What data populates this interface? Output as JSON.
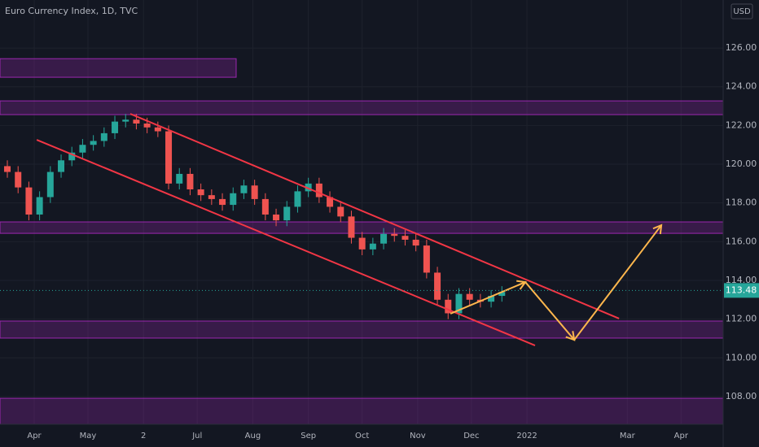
{
  "chart_data": {
    "type": "candlestick",
    "title": "Euro Currency Index, 1D, TVC",
    "currency": "USD",
    "background": "#131722",
    "up_color": "#26a69a",
    "down_color": "#ef5350",
    "xlim": [
      70.9,
      474.5
    ],
    "ylim": [
      106.57,
      128.48
    ],
    "yticks": [
      {
        "value": 108,
        "label": "108.00"
      },
      {
        "value": 110,
        "label": "110.00"
      },
      {
        "value": 112,
        "label": "112.00"
      },
      {
        "value": 114,
        "label": "114.00"
      },
      {
        "value": 116,
        "label": "116.00"
      },
      {
        "value": 118,
        "label": "118.00"
      },
      {
        "value": 120,
        "label": "120.00"
      },
      {
        "value": 122,
        "label": "122.00"
      },
      {
        "value": 124,
        "label": "124.00"
      },
      {
        "value": 126,
        "label": "126.00"
      }
    ],
    "xticks": [
      {
        "value": 90,
        "label": "Apr"
      },
      {
        "value": 120,
        "label": "May"
      },
      {
        "value": 151,
        "label": "2"
      },
      {
        "value": 181,
        "label": "Jul"
      },
      {
        "value": 212,
        "label": "Aug"
      },
      {
        "value": 243,
        "label": "Sep"
      },
      {
        "value": 273,
        "label": "Oct"
      },
      {
        "value": 304,
        "label": "Nov"
      },
      {
        "value": 334,
        "label": "Dec"
      },
      {
        "value": 365,
        "label": "2022"
      },
      {
        "value": 421,
        "label": "Mar"
      },
      {
        "value": 451,
        "label": "Apr"
      }
    ],
    "grid": true,
    "candles": {
      "x": [
        75,
        81,
        87,
        93,
        99,
        105,
        111,
        117,
        123,
        129,
        135,
        141,
        147,
        153,
        159,
        165,
        171,
        177,
        183,
        189,
        195,
        201,
        207,
        213,
        219,
        225,
        231,
        237,
        243,
        249,
        255,
        261,
        267,
        273,
        279,
        285,
        291,
        297,
        303,
        309,
        315,
        321,
        327,
        333,
        339,
        345,
        351
      ],
      "open": [
        119.9,
        119.6,
        118.8,
        117.4,
        118.3,
        119.6,
        120.2,
        120.6,
        121.0,
        121.2,
        121.6,
        122.2,
        122.3,
        122.1,
        121.9,
        121.7,
        119.0,
        119.5,
        118.7,
        118.4,
        118.2,
        117.9,
        118.5,
        118.9,
        118.2,
        117.4,
        117.1,
        117.8,
        118.6,
        119.0,
        118.3,
        117.8,
        117.3,
        116.2,
        115.6,
        115.9,
        116.4,
        116.3,
        116.1,
        115.8,
        114.4,
        113.0,
        112.3,
        113.3,
        113.0,
        112.9,
        113.2
      ],
      "high": [
        120.2,
        119.9,
        119.1,
        118.6,
        119.9,
        120.5,
        120.9,
        121.3,
        121.5,
        121.9,
        122.5,
        122.6,
        122.6,
        122.4,
        122.2,
        122.0,
        119.8,
        119.8,
        119.0,
        118.7,
        118.5,
        118.8,
        119.2,
        119.2,
        118.5,
        117.7,
        118.1,
        118.9,
        119.3,
        119.3,
        118.6,
        118.1,
        117.6,
        116.5,
        116.2,
        116.7,
        116.7,
        116.6,
        116.4,
        116.1,
        114.7,
        113.3,
        113.6,
        113.6,
        113.3,
        113.5,
        113.7
      ],
      "low": [
        119.3,
        118.5,
        117.1,
        117.1,
        118.0,
        119.3,
        119.9,
        120.3,
        120.7,
        120.9,
        121.3,
        121.9,
        121.8,
        121.6,
        121.4,
        118.7,
        118.7,
        118.4,
        118.1,
        117.9,
        117.6,
        117.6,
        118.2,
        117.9,
        117.1,
        116.8,
        116.8,
        117.5,
        118.3,
        118.0,
        117.5,
        117.0,
        115.9,
        115.3,
        115.3,
        115.6,
        116.0,
        115.8,
        115.5,
        114.1,
        112.7,
        112.0,
        112.0,
        112.7,
        112.6,
        112.6,
        112.9
      ],
      "close": [
        119.6,
        118.8,
        117.4,
        118.3,
        119.6,
        120.2,
        120.6,
        121.0,
        121.2,
        121.6,
        122.2,
        122.3,
        122.1,
        121.9,
        121.7,
        119.0,
        119.5,
        118.7,
        118.4,
        118.2,
        117.9,
        118.5,
        118.9,
        118.2,
        117.4,
        117.1,
        117.8,
        118.6,
        119.0,
        118.3,
        117.8,
        117.3,
        116.2,
        115.6,
        115.9,
        116.4,
        116.3,
        116.1,
        115.8,
        114.4,
        113.0,
        112.3,
        113.3,
        113.0,
        112.9,
        113.2,
        113.4
      ]
    },
    "last_price": 113.48,
    "zones": [
      {
        "x": [
          70.9,
          202.7
        ],
        "y": [
          124.49,
          125.45
        ]
      },
      {
        "x": [
          70.9,
          474.5
        ],
        "y": [
          122.56,
          123.27
        ]
      },
      {
        "x": [
          70.9,
          474.5
        ],
        "y": [
          116.43,
          117.02
        ]
      },
      {
        "x": [
          70.9,
          474.5
        ],
        "y": [
          111.02,
          111.9
        ]
      },
      {
        "x": [
          70.9,
          474.5
        ],
        "y": [
          106.57,
          107.91
        ]
      }
    ],
    "zone_color": "#9c27b0",
    "drawings": [
      {
        "color": "#f23645",
        "x": [
          143.6,
          416.4
        ],
        "y": [
          122.6,
          112.03
        ],
        "arrow": false
      },
      {
        "color": "#f23645",
        "x": [
          91.4,
          369.5
        ],
        "y": [
          121.26,
          110.64
        ],
        "arrow": false
      },
      {
        "color": "#ffb74d",
        "x": [
          322.3,
          364.1,
          391.4,
          440
        ],
        "y": [
          112.28,
          113.91,
          110.93,
          116.85
        ],
        "arrow": true
      }
    ]
  }
}
